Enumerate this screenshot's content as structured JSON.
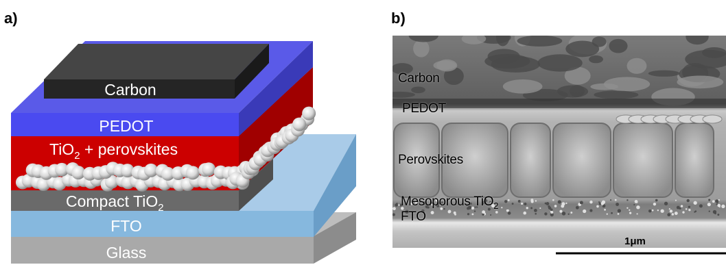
{
  "panel_a": {
    "label": "a)",
    "layers": {
      "carbon": "Carbon",
      "pedot": "PEDOT",
      "tio2_perovskite": {
        "prefix": "TiO",
        "sub": "2",
        "suffix": " + perovskites"
      },
      "compact": {
        "prefix": "Compact TiO",
        "sub": "2"
      },
      "fto": "FTO",
      "glass": "Glass"
    },
    "colors": {
      "carbon": "#2e2e2e",
      "pedot": "#4a4af0",
      "perovskite": "#cc0000",
      "compact": "#6a6a6a",
      "fto": "#86b8de",
      "glass": "#a9a9a9"
    }
  },
  "panel_b": {
    "label": "b)",
    "layers": {
      "carbon": "Carbon",
      "pedot": "PEDOT",
      "perovskites": "Perovskites",
      "mesoporous": {
        "prefix": "Mesoporous TiO",
        "sub": "2"
      },
      "fto": "FTO"
    },
    "scale_bar": "1μm"
  }
}
